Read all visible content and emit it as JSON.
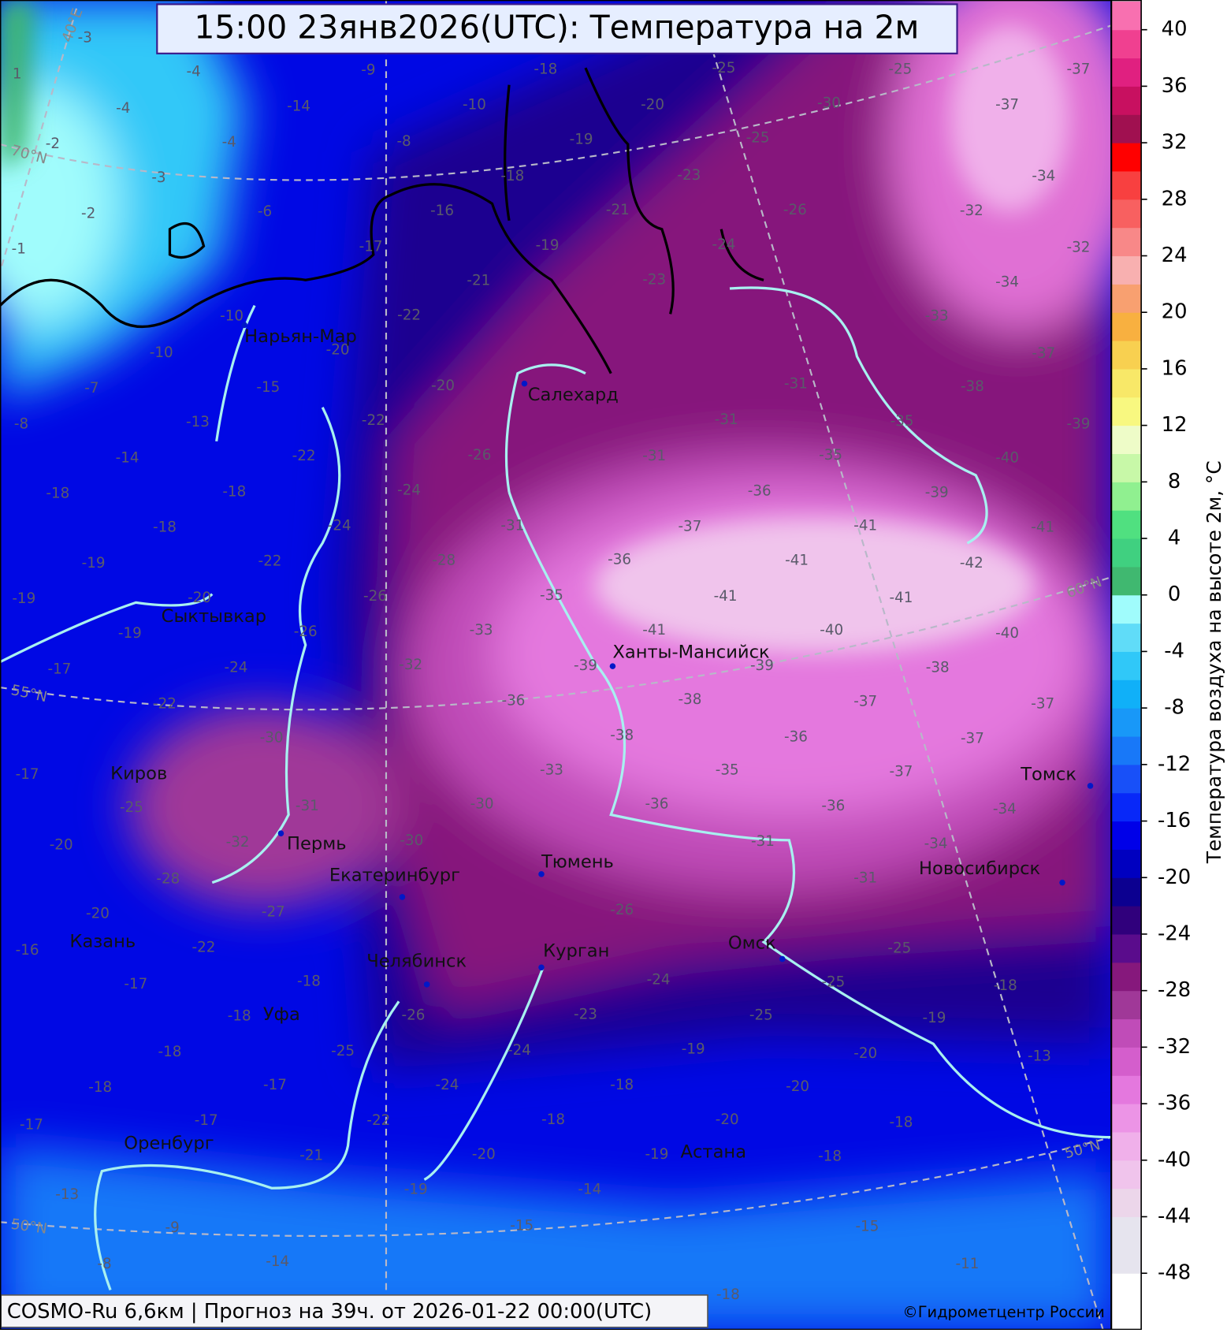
{
  "title": "15:00 23янв2026(UTC): Температура на 2м",
  "footer": "COSMO-Ru 6,6км | Прогноз на  39ч. от 2026-01-22 00:00(UTC)",
  "copyright": "©Гидрометцентр России",
  "colorbar": {
    "label": "Температура воздуха на высоте 2м, °C",
    "lim": [
      -50,
      42
    ],
    "ticks": [
      40,
      36,
      32,
      28,
      24,
      20,
      16,
      12,
      8,
      4,
      0,
      -4,
      -8,
      -12,
      -16,
      -20,
      -24,
      -28,
      -32,
      -36,
      -40,
      -44,
      -48
    ],
    "colors": [
      "#ffffff",
      "#e6e4ee",
      "#e6e4ee",
      "#ecd6ea",
      "#f0c4ec",
      "#f0b0ea",
      "#ec94e6",
      "#e478de",
      "#d45ecc",
      "#c04cb8",
      "#a03898",
      "#86187c",
      "#5a0c8c",
      "#30007c",
      "#0c0090",
      "#0000c0",
      "#0000e8",
      "#0828f8",
      "#1850f8",
      "#1878f8",
      "#1898f8",
      "#10b0f8",
      "#30c8f8",
      "#60dcf8",
      "#a0fcfc",
      "#40b870",
      "#40d080",
      "#50e080",
      "#90f090",
      "#c8f8a8",
      "#eefcc8",
      "#f8f880",
      "#f8e868",
      "#f8d050",
      "#f8b040",
      "#f8a070",
      "#f8b0b0",
      "#f88888",
      "#f86060",
      "#f84040",
      "#ff0000",
      "#a01050",
      "#c81060",
      "#e02080",
      "#f04090",
      "#f870b0"
    ]
  },
  "grid_labels": [
    "40°E",
    "70°N",
    "60°N",
    "55°N",
    "50°N",
    "50°N"
  ],
  "cities": [
    "Нарьян-Мар",
    "Салехард",
    "Сыктывкар",
    "Ханты-Мансийск",
    "Киров",
    "Пермь",
    "Екатеринбург",
    "Тюмень",
    "Новосибирск",
    "Томск",
    "Казань",
    "Челябинск",
    "Курган",
    "Омск",
    "Уфа",
    "Оренбург",
    "Астана"
  ],
  "temperature_labels": [
    -3,
    1,
    -4,
    -4,
    -2,
    -4,
    -3,
    -2,
    -6,
    -1,
    -9,
    -14,
    -10,
    -8,
    -18,
    -20,
    -19,
    -18,
    -23,
    -21,
    -16,
    -19,
    -17,
    -21,
    -23,
    -24,
    -25,
    -25,
    -26,
    -30,
    -25,
    -37,
    -37,
    -34,
    -32,
    -32,
    -34,
    -33,
    -37,
    -38,
    -35,
    -39,
    -40,
    -39,
    -41,
    -41,
    -42,
    -41,
    -31,
    -31,
    -35,
    -36,
    -37,
    -31,
    -31,
    -28,
    -36,
    -41,
    -41,
    -41,
    -35,
    -33,
    -39,
    -39,
    -40,
    -40,
    -38,
    -37,
    -37,
    -38,
    -36,
    -32,
    -38,
    -36,
    -37,
    -37,
    -35,
    -33,
    -30,
    -36,
    -36,
    -34,
    -34,
    -31,
    -31,
    -30,
    -26,
    -25,
    -24,
    -25,
    -18,
    -19,
    -25,
    -23,
    -26,
    -24,
    -19,
    -20,
    -13,
    -20,
    -18,
    -24,
    -22,
    -18,
    -20,
    -18,
    -18,
    -19,
    -20,
    -21,
    -19,
    -14,
    -25,
    -17,
    -17,
    -13,
    -9,
    -8,
    -14,
    -15,
    -15,
    -18,
    -11,
    -18,
    -18,
    -17,
    -18,
    -18,
    -17,
    -16,
    -22,
    -20,
    -27,
    -28,
    -20,
    -25,
    -32,
    -31,
    -17,
    -30,
    -22,
    -24,
    -17,
    -19,
    -26,
    -19,
    -20,
    -19,
    -22,
    -18,
    -18,
    -24,
    -14,
    -18,
    -22,
    -8,
    -13,
    -15,
    -7,
    -10,
    -20,
    -22,
    -22,
    -10,
    -20,
    -26,
    -24,
    -26
  ]
}
